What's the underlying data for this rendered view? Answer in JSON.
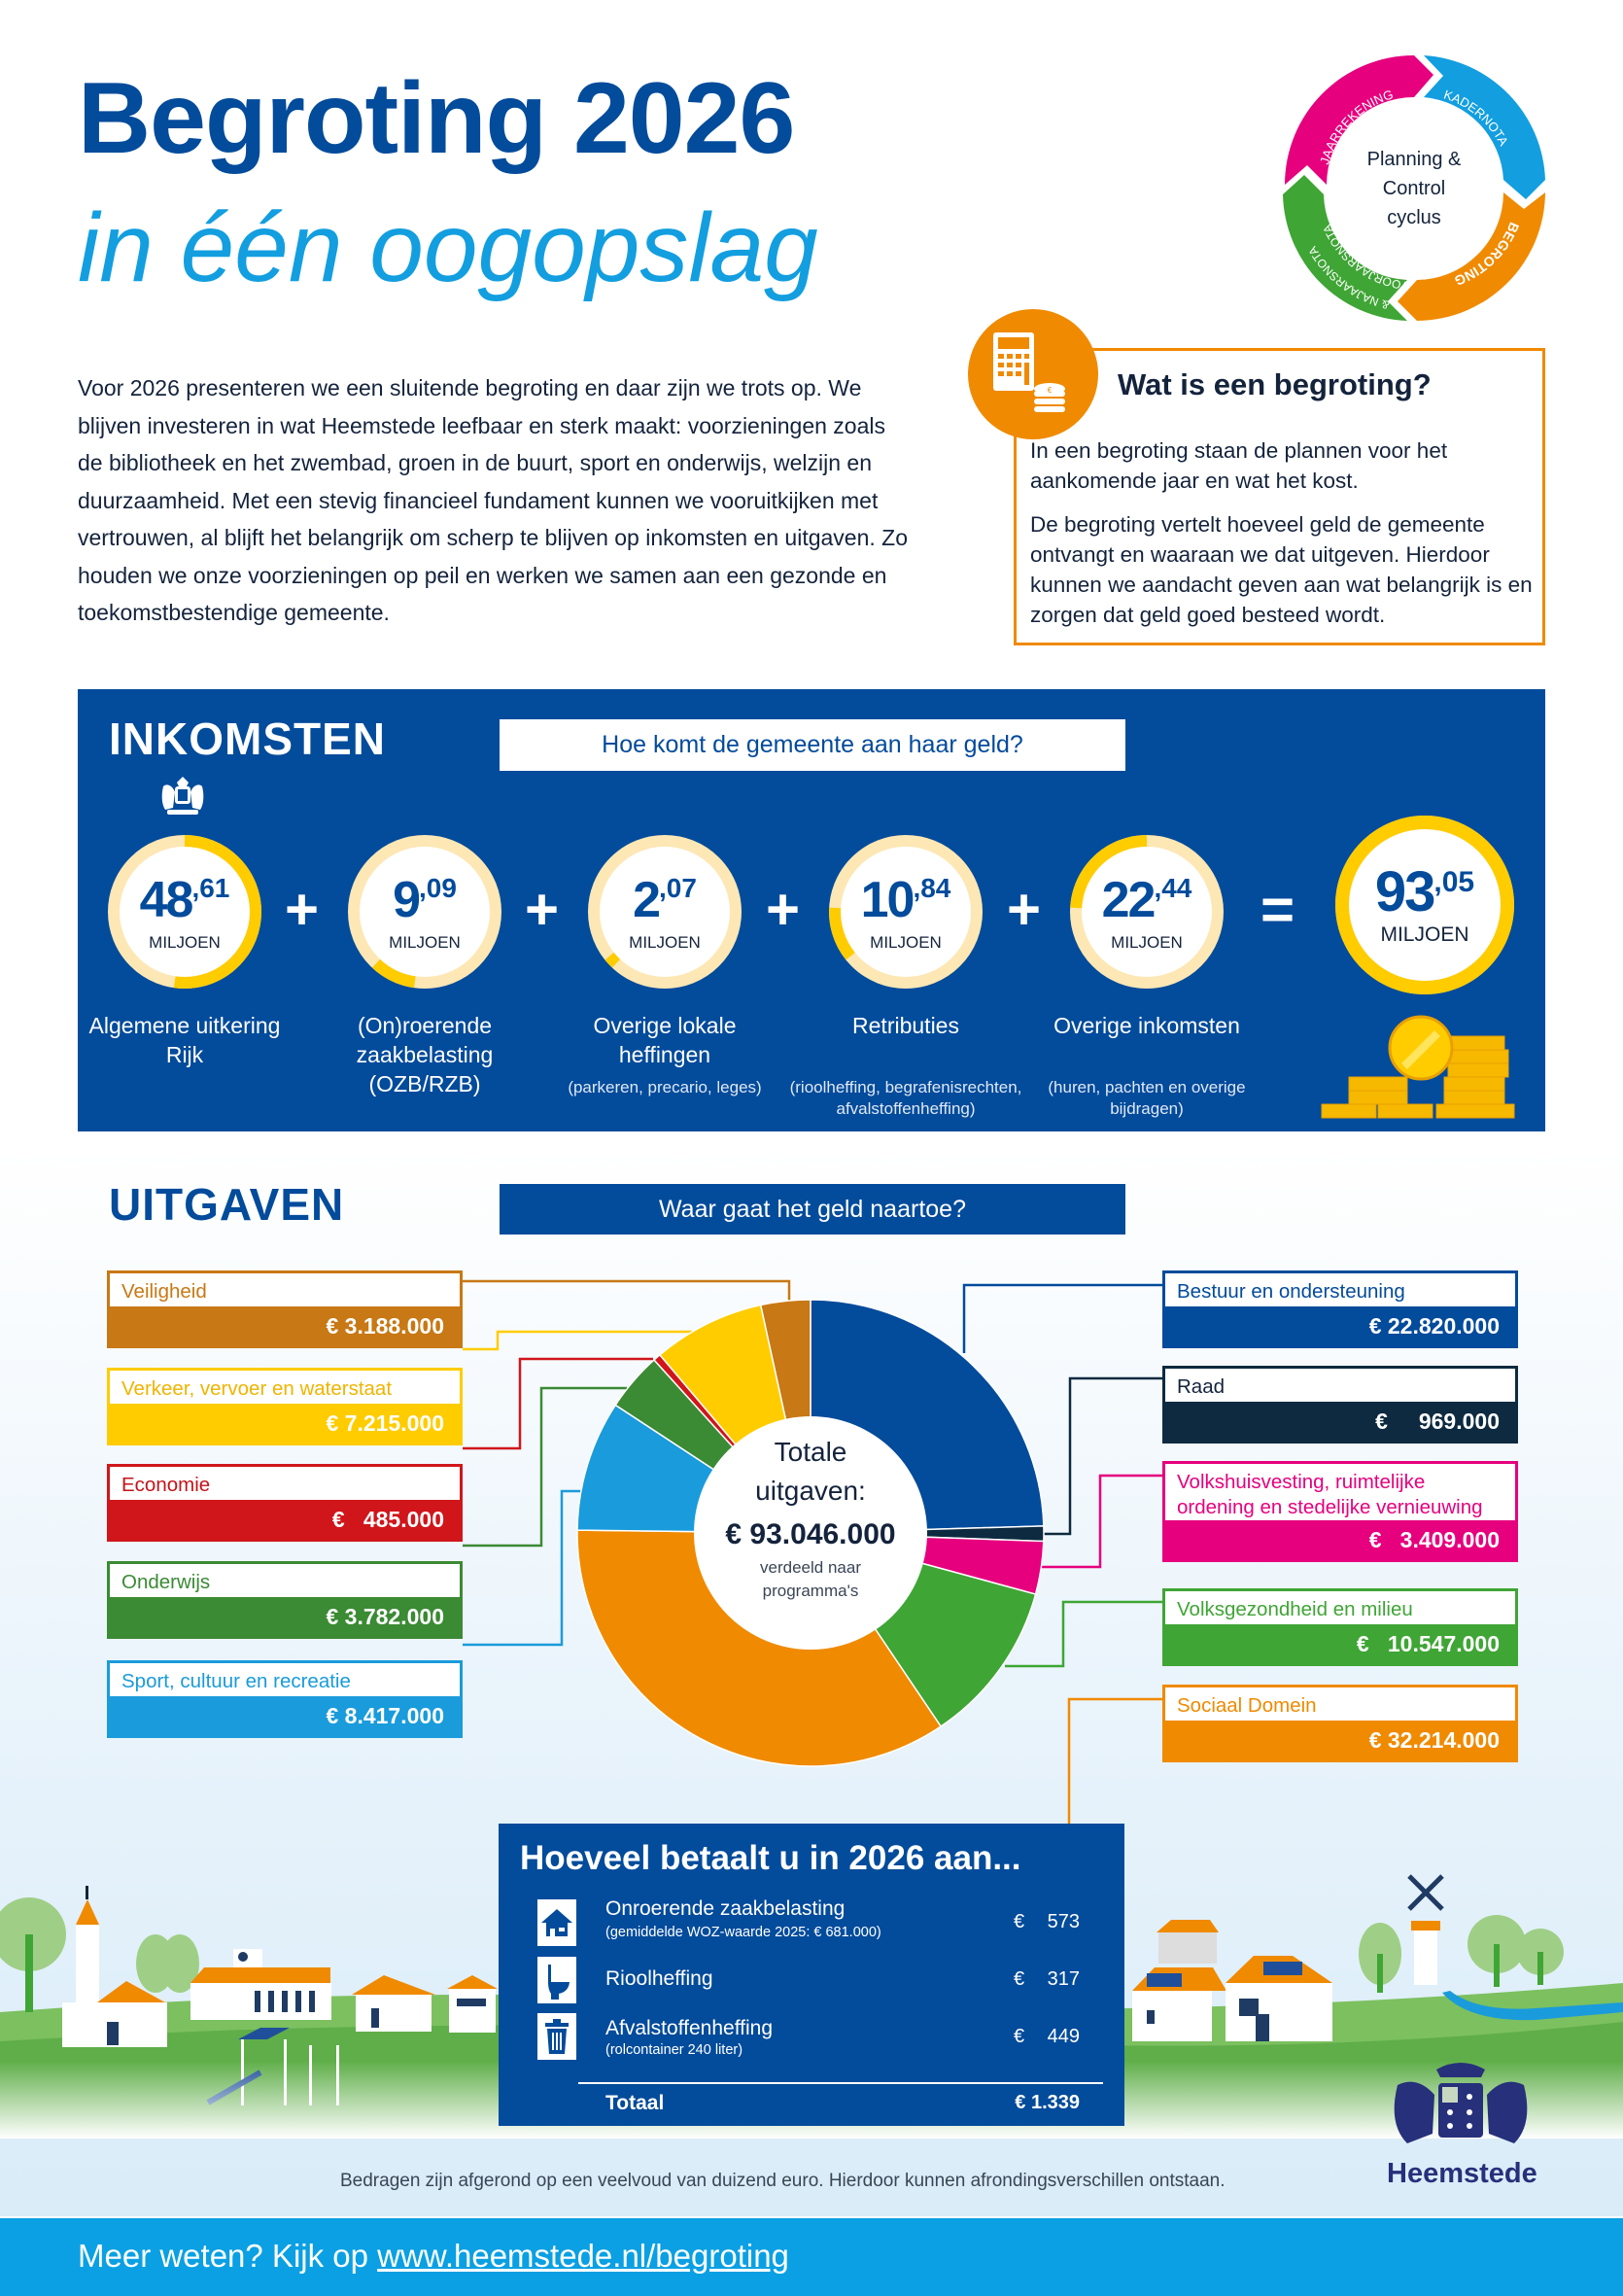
{
  "header": {
    "title": "Begroting 2026",
    "subtitle": "in één oogopslag"
  },
  "pc_cycle": {
    "center_lines": [
      "Planning &",
      "Control",
      "cyclus"
    ],
    "segments": [
      {
        "label": "JAARREKENING",
        "color": "#e6007e"
      },
      {
        "label": "KADERNOTA",
        "color": "#139ee0"
      },
      {
        "label": "BEGROTING",
        "color": "#f08a00"
      },
      {
        "label": "VOORJAARSNOTA & NAJAARSNOTA",
        "color": "#3fa535"
      }
    ]
  },
  "intro": {
    "text": "Voor 2026 presenteren we een sluitende begroting en daar zijn we trots op. We blijven investeren in wat Heemstede leefbaar en sterk maakt: voor­zieningen zoals de bibliotheek en het zwembad, groen in de buurt, sport en onderwijs, welzijn en duurzaamheid. Met een stevig financieel fundament kunnen we vooruitkijken met vertrouwen, al blijft het belangrijk om scherp te blijven op inkomsten en uitgaven. Zo houden we onze voorzieningen op peil en werken we samen aan een gezonde en toekomstbestendige gemeente."
  },
  "what": {
    "title": "Wat is een begroting?",
    "p1": "In een begroting staan de plannen voor het aankomende jaar en wat het kost.",
    "p2": "De begroting vertelt hoeveel geld de gemeente ontvangt en waaraan we dat uitgeven. Hierdoor kunnen we aandacht geven aan wat belangrijk is en zorgen dat geld goed besteed wordt."
  },
  "inkomsten": {
    "title": "INKOMSTEN",
    "question": "Hoe komt de gemeente aan haar geld?",
    "unit": "MILJOEN",
    "plus": "+",
    "equals": "=",
    "items": [
      {
        "int": "48",
        "dec": ",61",
        "value": 48.61,
        "label": "Algemene uitkering Rijk",
        "sub": ""
      },
      {
        "int": "9",
        "dec": ",09",
        "value": 9.09,
        "label": "(On)roerende zaakbelasting (OZB/RZB)",
        "sub": ""
      },
      {
        "int": "2",
        "dec": ",07",
        "value": 2.07,
        "label": "Overige lokale heffingen",
        "sub": "(parkeren, precario, leges)"
      },
      {
        "int": "10",
        "dec": ",84",
        "value": 10.84,
        "label": "Retributies",
        "sub": "(rioolheffing, begrafenis­rechten, afvalstoffenheffing)"
      },
      {
        "int": "22",
        "dec": ",44",
        "value": 22.44,
        "label": "Overige inkomsten",
        "sub": "(huren, pachten en overige bijdragen)"
      }
    ],
    "total": {
      "int": "93",
      "dec": ",05",
      "value": 93.05
    },
    "ring_color": "#ffcc00",
    "ring_track": "#fde7b4"
  },
  "uitgaven": {
    "title": "UITGAVEN",
    "question": "Waar gaat het geld naartoe?",
    "center": {
      "line1": "Totale",
      "line2": "uitgaven:",
      "amount": "€ 93.046.000",
      "line3": "verdeeld naar",
      "line4": "programma's"
    }
  },
  "chart_data": {
    "type": "pie",
    "title": "Totale uitgaven: € 93.046.000",
    "subtitle": "verdeeld naar programma's",
    "unit": "EUR",
    "total": 93046000,
    "order": "clockwise-from-top",
    "slices": [
      {
        "name": "Bestuur en ondersteuning",
        "value": 22820000,
        "label": "€ 22.820.000",
        "color": "#034b9b"
      },
      {
        "name": "Raad",
        "value": 969000,
        "label": "€ 969.000",
        "color": "#0d2a40"
      },
      {
        "name": "Volkshuisvesting, ruimtelijke ordening en stedelijke vernieuwing",
        "value": 3409000,
        "label": "€ 3.409.000",
        "color": "#e6007e"
      },
      {
        "name": "Volksgezondheid en milieu",
        "value": 10547000,
        "label": "€ 10.547.000",
        "color": "#3fa535"
      },
      {
        "name": "Sociaal Domein",
        "value": 32214000,
        "label": "€ 32.214.000",
        "color": "#f08a00"
      },
      {
        "name": "Sport, cultuur en recreatie",
        "value": 8417000,
        "label": "€ 8.417.000",
        "color": "#1a9bdb"
      },
      {
        "name": "Onderwijs",
        "value": 3782000,
        "label": "€ 3.782.000",
        "color": "#3b8a34"
      },
      {
        "name": "Economie",
        "value": 485000,
        "label": "€ 485.000",
        "color": "#d0161b"
      },
      {
        "name": "Verkeer, vervoer en waterstaat",
        "value": 7215000,
        "label": "€ 7.215.000",
        "color": "#ffcc00"
      },
      {
        "name": "Veiligheid",
        "value": 3188000,
        "label": "€ 3.188.000",
        "color": "#c87814"
      }
    ]
  },
  "categories_left": [
    {
      "name": "Veiligheid",
      "amount": "€ 3.188.000",
      "color": "#c87814",
      "text_color": "#c87814"
    },
    {
      "name": "Verkeer, vervoer en waterstaat",
      "amount": "€ 7.215.000",
      "color": "#ffcc00",
      "text_color": "#f0b400"
    },
    {
      "name": "Economie",
      "amount": "€   485.000",
      "color": "#d0161b",
      "text_color": "#c4141a"
    },
    {
      "name": "Onderwijs",
      "amount": "€ 3.782.000",
      "color": "#3b8a34",
      "text_color": "#3b8a34"
    },
    {
      "name": "Sport, cultuur en recreatie",
      "amount": "€ 8.417.000",
      "color": "#1a9bdb",
      "text_color": "#1a9bdb"
    }
  ],
  "categories_right": [
    {
      "name": "Bestuur en ondersteuning",
      "amount": "€ 22.820.000",
      "color": "#034b9b",
      "text_color": "#034b9b"
    },
    {
      "name": "Raad",
      "amount": "€     969.000",
      "color": "#0d2a40",
      "text_color": "#14233c"
    },
    {
      "name": "Volkshuisvesting, ruimtelijke ordening en stedelijke vernieuwing",
      "amount": "€   3.409.000",
      "color": "#e6007e",
      "text_color": "#e6007e"
    },
    {
      "name": "Volksgezondheid en milieu",
      "amount": "€   10.547.000",
      "color": "#3fa535",
      "text_color": "#3fa535"
    },
    {
      "name": "Sociaal Domein",
      "amount": "€ 32.214.000",
      "color": "#f08a00",
      "text_color": "#f08a00"
    }
  ],
  "betaalt": {
    "title": "Hoeveel betaalt u in 2026 aan...",
    "rows": [
      {
        "icon": "house-icon",
        "name": "Onroerende zaakbelasting",
        "note": "(gemiddelde WOZ-waarde 2025: € 681.000)",
        "currency": "€",
        "value": "573"
      },
      {
        "icon": "toilet-icon",
        "name": "Rioolheffing",
        "note": "",
        "currency": "€",
        "value": "317"
      },
      {
        "icon": "trash-bin-icon",
        "name": "Afvalstoffenheffing",
        "note": "(rolcontainer 240 liter)",
        "currency": "€",
        "value": "449"
      }
    ],
    "total_label": "Totaal",
    "total_value": "€ 1.339"
  },
  "disclaimer": "Bedragen zijn afgerond op een veelvoud van duizend euro. Hierdoor kunnen afrondingsverschillen ontstaan.",
  "logo": {
    "name": "Heemstede"
  },
  "footer": {
    "prefix": "Meer weten? Kijk op ",
    "link": "www.heemstede.nl/begroting"
  }
}
